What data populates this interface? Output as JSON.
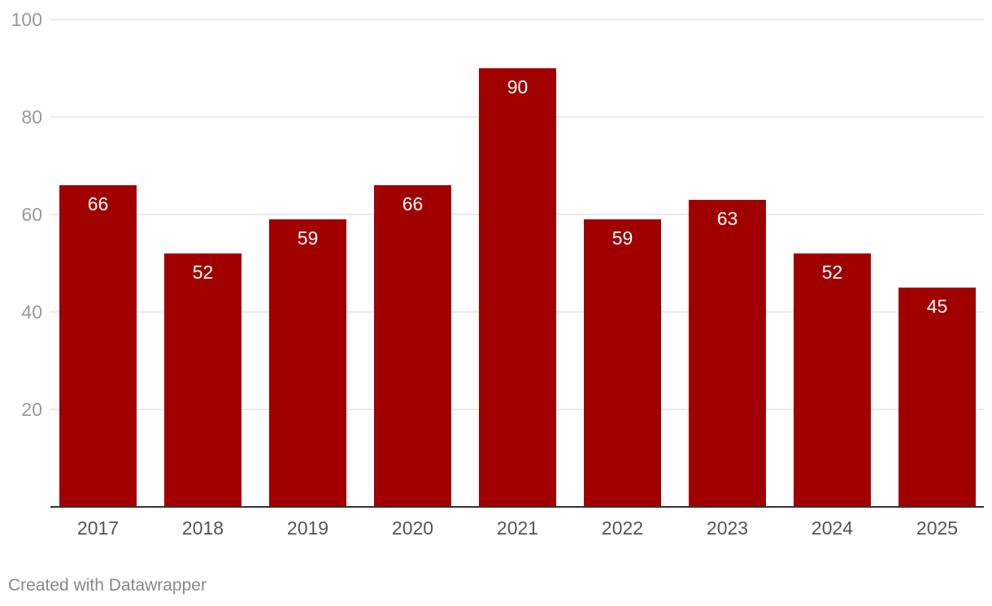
{
  "chart_data": {
    "type": "bar",
    "title": "",
    "xlabel": "",
    "ylabel": "",
    "categories": [
      "2017",
      "2018",
      "2019",
      "2020",
      "2021",
      "2022",
      "2023",
      "2024",
      "2025"
    ],
    "values": [
      66,
      52,
      59,
      66,
      90,
      59,
      63,
      52,
      45
    ],
    "ylim": [
      0,
      100
    ],
    "yticks": [
      20,
      40,
      60,
      80,
      100
    ],
    "grid": true,
    "legend": "none",
    "bar_color": "#a00000",
    "grid_color": "#e3e3e3",
    "axis_color": "#333333"
  },
  "footer": {
    "credit": "Created with Datawrapper"
  }
}
